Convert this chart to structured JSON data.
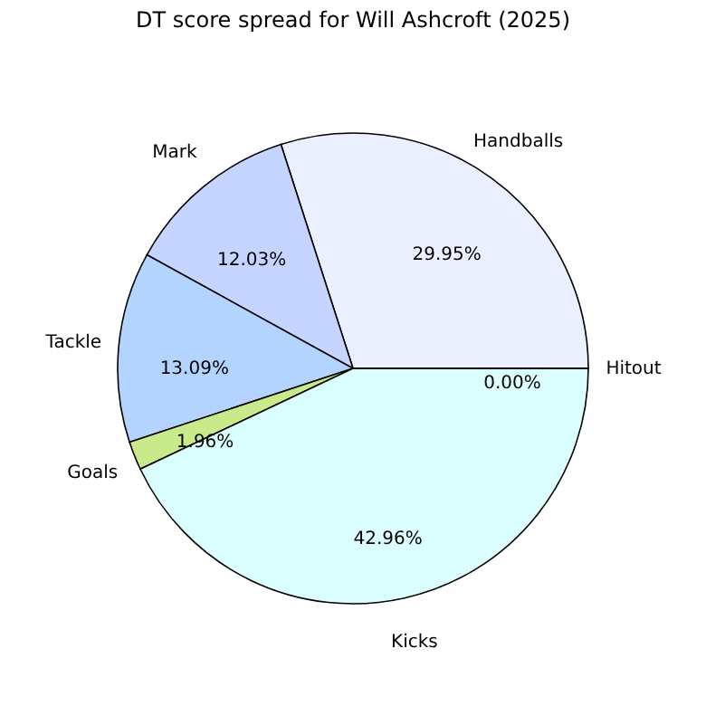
{
  "chart_data": {
    "type": "pie",
    "title": "DT score spread for Will Ashcroft (2025)",
    "categories": [
      "Handballs",
      "Mark",
      "Tackle",
      "Goals",
      "Kicks",
      "Hitout"
    ],
    "values": [
      29.95,
      12.03,
      13.09,
      1.96,
      42.96,
      0.0
    ],
    "value_labels": [
      "29.95%",
      "12.03%",
      "13.09%",
      "1.96%",
      "42.96%",
      "0.00%"
    ],
    "colors": [
      "#eaf0ff",
      "#c5d5ff",
      "#b3d4ff",
      "#c9ea8a",
      "#dbffff",
      "#ffffff"
    ],
    "legend": false
  }
}
